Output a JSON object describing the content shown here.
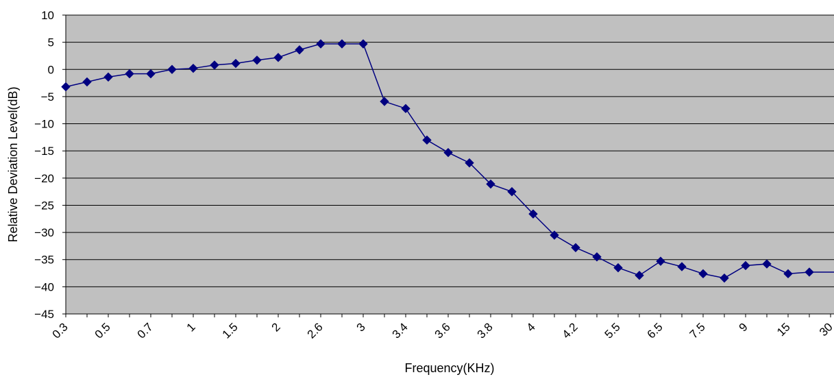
{
  "chart_data": {
    "type": "line",
    "title": "",
    "xlabel": "Frequency(KHz)",
    "ylabel": "Relative Deviation Level(dB)",
    "ylim": [
      -45,
      10
    ],
    "yticks": [
      10,
      5,
      0,
      -5,
      -10,
      -15,
      -20,
      -25,
      -30,
      -35,
      -40,
      -45
    ],
    "grid": true,
    "legend": "none",
    "colors": {
      "plot_background": "#c0c0c0",
      "line": "#000080",
      "marker": "#000080",
      "gridline": "#000000"
    },
    "marker": "diamond",
    "x_tick_labels": [
      "0.3",
      "0.5",
      "0.7",
      "1",
      "1.5",
      "2",
      "2.6",
      "3",
      "3.4",
      "3.6",
      "3.8",
      "4",
      "4.2",
      "5.5",
      "6.5",
      "7.5",
      "9",
      "15",
      "30"
    ],
    "series": [
      {
        "values": [
          -3.2,
          -2.3,
          -1.4,
          -0.8,
          -0.8,
          0.0,
          0.2,
          0.8,
          1.1,
          1.7,
          2.2,
          3.6,
          4.7,
          4.7,
          4.7,
          -5.9,
          -7.2,
          -13.0,
          -15.3,
          -17.2,
          -21.1,
          -22.5,
          -26.6,
          -30.5,
          -32.8,
          -34.5,
          -36.5,
          -37.9,
          -35.3,
          -36.3,
          -37.6,
          -38.4,
          -36.1,
          -35.8,
          -37.6,
          -37.3
        ]
      }
    ]
  }
}
